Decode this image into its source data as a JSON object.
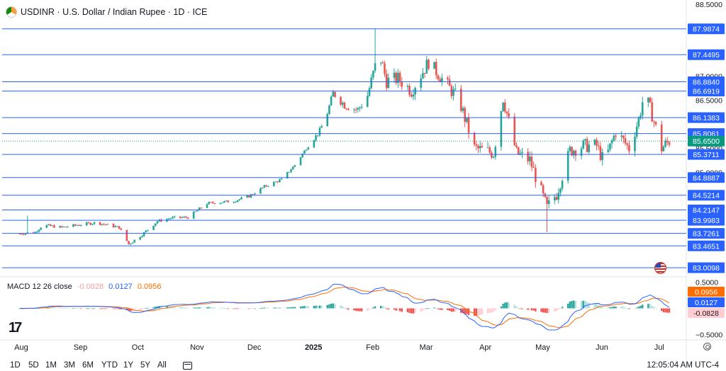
{
  "header": {
    "symbol": "USDINR",
    "name": "U.S. Dollar / Indian Rupee",
    "interval": "1D",
    "exchange": "ICE",
    "separator": "·"
  },
  "chart_data": {
    "type": "candlestick",
    "title": "USDINR · U.S. Dollar / Indian Rupee · 1D · ICE",
    "ylim": [
      82.85,
      88.5
    ],
    "y_ticks": [
      88.5,
      87.0,
      86.5,
      85.5,
      85.0,
      84.5
    ],
    "y_ticks_text": [
      "88.5000",
      "87.0000",
      "86.5000",
      "85.5000",
      "85.0000",
      "84.5000"
    ],
    "x_labels": [
      {
        "label": "Aug",
        "day": 0
      },
      {
        "label": "Sep",
        "day": 31
      },
      {
        "label": "Oct",
        "day": 61
      },
      {
        "label": "Nov",
        "day": 92
      },
      {
        "label": "Dec",
        "day": 122
      },
      {
        "label": "2025",
        "day": 153
      },
      {
        "label": "Feb",
        "day": 184
      },
      {
        "label": "Mar",
        "day": 212
      },
      {
        "label": "Apr",
        "day": 243
      },
      {
        "label": "May",
        "day": 273
      },
      {
        "label": "Jun",
        "day": 304
      },
      {
        "label": "Jul",
        "day": 334
      }
    ],
    "horizontal_levels": [
      87.9874,
      87.4495,
      86.884,
      86.6919,
      86.1383,
      85.8061,
      85.3711,
      84.8887,
      84.5214,
      84.2147,
      83.9983,
      83.7261,
      83.4651,
      83.0098
    ],
    "horizontal_levels_text": [
      "87.9874",
      "87.4495",
      "86.8840",
      "86.6919",
      "86.1383",
      "85.8061",
      "85.3711",
      "84.8887",
      "84.5214",
      "84.2147",
      "83.9983",
      "83.7261",
      "83.4651",
      "83.0098"
    ],
    "last_price": 85.65,
    "last_price_text": "85.6500",
    "close_path": [
      {
        "day": 0,
        "close": 83.72
      },
      {
        "day": 8,
        "close": 83.75
      },
      {
        "day": 12,
        "close": 83.9
      },
      {
        "day": 22,
        "close": 83.85
      },
      {
        "day": 30,
        "close": 83.9
      },
      {
        "day": 40,
        "close": 83.95
      },
      {
        "day": 52,
        "close": 83.85
      },
      {
        "day": 57,
        "close": 83.5
      },
      {
        "day": 64,
        "close": 83.7
      },
      {
        "day": 72,
        "close": 83.98
      },
      {
        "day": 80,
        "close": 84.05
      },
      {
        "day": 88,
        "close": 84.06
      },
      {
        "day": 98,
        "close": 84.35
      },
      {
        "day": 112,
        "close": 84.4
      },
      {
        "day": 120,
        "close": 84.5
      },
      {
        "day": 128,
        "close": 84.7
      },
      {
        "day": 137,
        "close": 84.85
      },
      {
        "day": 144,
        "close": 85.15
      },
      {
        "day": 150,
        "close": 85.5
      },
      {
        "day": 156,
        "close": 85.8
      },
      {
        "day": 160,
        "close": 86.1
      },
      {
        "day": 164,
        "close": 86.65
      },
      {
        "day": 170,
        "close": 86.4
      },
      {
        "day": 177,
        "close": 86.3
      },
      {
        "day": 182,
        "close": 86.6
      },
      {
        "day": 188,
        "close": 87.5
      },
      {
        "day": 192,
        "close": 86.9
      },
      {
        "day": 198,
        "close": 86.95
      },
      {
        "day": 205,
        "close": 86.7
      },
      {
        "day": 214,
        "close": 87.3
      },
      {
        "day": 222,
        "close": 86.9
      },
      {
        "day": 230,
        "close": 86.5
      },
      {
        "day": 238,
        "close": 85.5
      },
      {
        "day": 243,
        "close": 85.45
      },
      {
        "day": 248,
        "close": 85.4
      },
      {
        "day": 253,
        "close": 86.55
      },
      {
        "day": 260,
        "close": 85.4
      },
      {
        "day": 267,
        "close": 85.25
      },
      {
        "day": 276,
        "close": 84.25
      },
      {
        "day": 281,
        "close": 84.55
      },
      {
        "day": 288,
        "close": 85.45
      },
      {
        "day": 295,
        "close": 85.55
      },
      {
        "day": 302,
        "close": 85.55
      },
      {
        "day": 306,
        "close": 85.2
      },
      {
        "day": 312,
        "close": 85.85
      },
      {
        "day": 319,
        "close": 85.5
      },
      {
        "day": 324,
        "close": 86.1
      },
      {
        "day": 327,
        "close": 86.65
      },
      {
        "day": 331,
        "close": 86.2
      },
      {
        "day": 336,
        "close": 85.5
      },
      {
        "day": 340,
        "close": 85.65
      }
    ],
    "spikes": [
      {
        "day": 186,
        "high": 88.0
      },
      {
        "day": 276,
        "low": 83.75
      },
      {
        "day": 5,
        "high": 84.1
      }
    ],
    "macd": {
      "label": "MACD 12 26 close",
      "histogram": -0.0828,
      "histogram_text": "-0.0828",
      "macd": 0.0127,
      "macd_text": "0.0127",
      "signal": 0.0956,
      "signal_text": "0.0956",
      "ylim": [
        -0.55,
        0.55
      ],
      "y_ticks": [
        0.5,
        -0.5
      ],
      "y_ticks_text": [
        "0.5000",
        "−0.5000"
      ],
      "colors": {
        "macd": "#2962ff",
        "signal": "#ff6d00",
        "hist_up": "#26a69a",
        "hist_up_light": "#b2dfdb",
        "hist_down": "#ef5350",
        "hist_down_light": "#ffcdd2"
      }
    },
    "colors": {
      "up": "#26a69a",
      "down": "#ef5350",
      "level_line": "#2962ff",
      "last_price": "#089981"
    }
  },
  "toolbar": {
    "timeframes": [
      "1D",
      "5D",
      "1M",
      "3M",
      "6M",
      "YTD",
      "1Y",
      "5Y",
      "All"
    ],
    "clock": "12:05:04 AM UTC-4",
    "icons": [
      "calendar-icon",
      "settings-icon"
    ]
  }
}
